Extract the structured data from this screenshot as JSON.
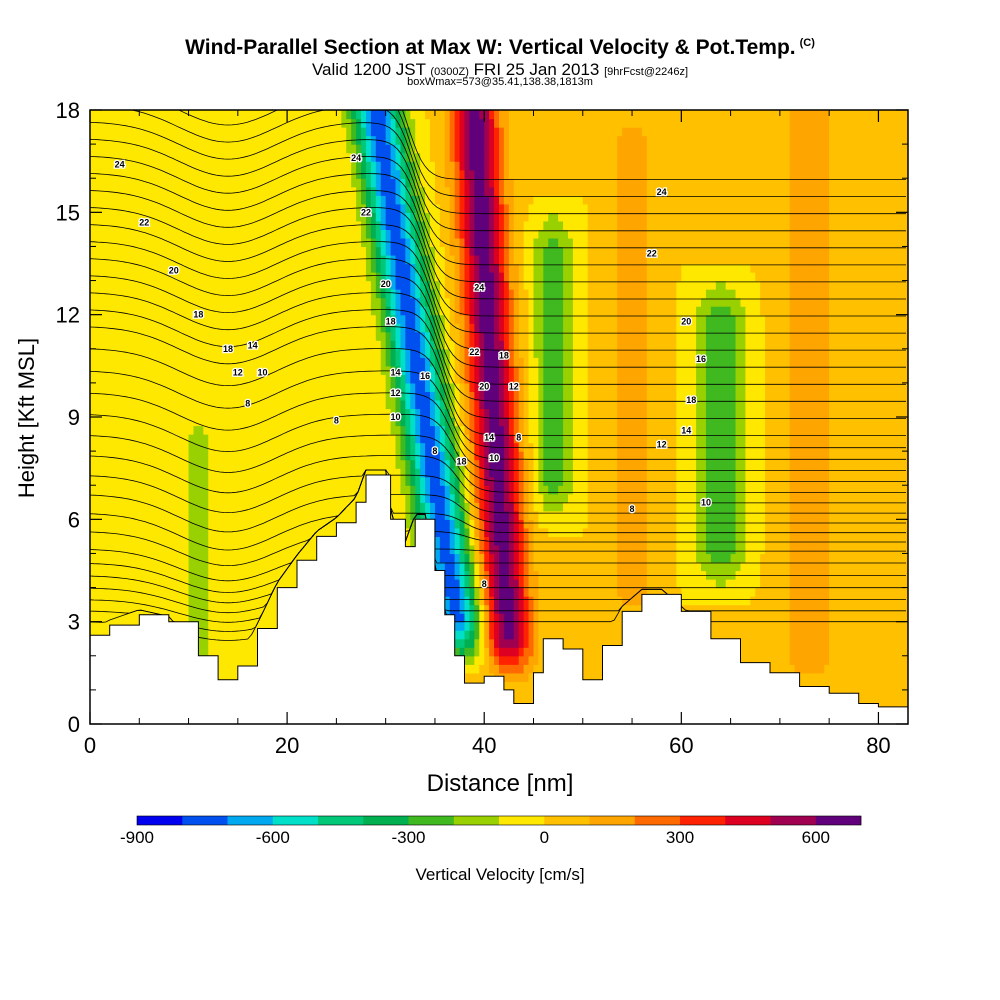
{
  "title": {
    "main": "Wind-Parallel Section at Max W: Vertical Velocity & Pot.Temp.",
    "main_tag": "(C)",
    "valid_prefix": "Valid 1200 JST",
    "valid_zulu": "(0300Z)",
    "valid_date": "FRI 25 Jan 2013",
    "forecast_tag": "[9hrFcst@2246z]",
    "box_info": "boxWmax=573@35.41,138.38,1813m"
  },
  "chart_data": {
    "type": "contour-cross-section",
    "xlabel": "Distance [nm]",
    "ylabel": "Height [Kft MSL]",
    "xlim": [
      0,
      83
    ],
    "ylim": [
      0,
      18
    ],
    "x_ticks": [
      0,
      20,
      40,
      60,
      80
    ],
    "y_ticks": [
      0,
      3,
      6,
      9,
      12,
      15,
      18
    ],
    "colorbar": {
      "label": "Vertical Velocity [cm/s]",
      "tick_labels": [
        -900,
        -600,
        -300,
        0,
        300,
        600
      ],
      "levels": [
        -900,
        -800,
        -700,
        -600,
        -500,
        -400,
        -300,
        -200,
        -100,
        0,
        100,
        200,
        300,
        400,
        500,
        600,
        700
      ],
      "colors": [
        "#0000ee",
        "#0050f0",
        "#00a8f0",
        "#00e0c8",
        "#00c878",
        "#00b050",
        "#40b820",
        "#98d000",
        "#ffe800",
        "#ffc000",
        "#ffa500",
        "#ff6a00",
        "#ff2200",
        "#dd0020",
        "#a00050",
        "#60007a"
      ]
    },
    "terrain_kft": {
      "x": [
        0,
        2,
        5,
        8,
        11,
        13,
        15,
        17,
        19,
        21,
        23,
        25,
        27,
        28,
        30,
        30.5,
        32,
        33,
        34,
        35,
        36,
        37,
        38,
        40,
        42,
        43,
        45,
        46,
        48,
        50,
        52,
        54,
        56,
        58,
        60,
        63,
        66,
        69,
        72,
        75,
        78,
        80,
        83
      ],
      "height": [
        2.6,
        2.9,
        3.2,
        3.0,
        2.0,
        1.3,
        1.7,
        2.8,
        4.0,
        4.8,
        5.5,
        5.9,
        6.5,
        7.3,
        7.3,
        6.0,
        5.2,
        6.0,
        6.0,
        4.5,
        3.2,
        2.0,
        1.2,
        1.4,
        1.0,
        0.6,
        1.5,
        2.5,
        2.2,
        1.3,
        2.3,
        3.3,
        3.8,
        3.8,
        3.3,
        2.5,
        1.8,
        1.5,
        1.1,
        0.9,
        0.6,
        0.5,
        0.3
      ]
    },
    "w_features_cm_s": [
      {
        "name": "strong descent",
        "x_center": 34,
        "x_width": 2.5,
        "z_bottom": 3,
        "z_top": 18,
        "x_shift_per_kft": -0.55,
        "peak": -750
      },
      {
        "name": "strong ascent",
        "x_center": 41,
        "x_width": 2.4,
        "z_bottom": 2.5,
        "z_top": 18,
        "x_shift_per_kft": -0.22,
        "peak": 650
      },
      {
        "name": "weak descent",
        "x_center": 47,
        "x_width": 2,
        "z_bottom": 7,
        "z_top": 14,
        "x_shift_per_kft": 0,
        "peak": -250
      },
      {
        "name": "weak descent",
        "x_center": 64,
        "x_width": 2.5,
        "z_bottom": 5,
        "z_top": 12,
        "x_shift_per_kft": 0,
        "peak": -260
      },
      {
        "name": "weak descent",
        "x_center": 11,
        "x_width": 1.5,
        "z_bottom": 1,
        "z_top": 8,
        "x_shift_per_kft": 0,
        "peak": -180
      },
      {
        "name": "weak ascent",
        "x_center": 73,
        "x_width": 3,
        "z_bottom": 2,
        "z_top": 18,
        "x_shift_per_kft": 0,
        "peak": 170
      },
      {
        "name": "weak ascent",
        "x_center": 55,
        "x_width": 2.5,
        "z_bottom": 4,
        "z_top": 17,
        "x_shift_per_kft": 0,
        "peak": 150
      }
    ],
    "theta_contour_labels": [
      {
        "text": "24",
        "x": 3,
        "z": 16.4
      },
      {
        "text": "24",
        "x": 27,
        "z": 16.6
      },
      {
        "text": "24",
        "x": 58,
        "z": 15.6
      },
      {
        "text": "24",
        "x": 39.5,
        "z": 12.8
      },
      {
        "text": "22",
        "x": 5.5,
        "z": 14.7
      },
      {
        "text": "22",
        "x": 28,
        "z": 15
      },
      {
        "text": "22",
        "x": 57,
        "z": 13.8
      },
      {
        "text": "22",
        "x": 39,
        "z": 10.9
      },
      {
        "text": "20",
        "x": 8.5,
        "z": 13.3
      },
      {
        "text": "20",
        "x": 30,
        "z": 12.9
      },
      {
        "text": "20",
        "x": 60.5,
        "z": 11.8
      },
      {
        "text": "20",
        "x": 40,
        "z": 9.9
      },
      {
        "text": "18",
        "x": 11,
        "z": 12
      },
      {
        "text": "18",
        "x": 14,
        "z": 11
      },
      {
        "text": "18",
        "x": 30.5,
        "z": 11.8
      },
      {
        "text": "18",
        "x": 42,
        "z": 10.8
      },
      {
        "text": "18",
        "x": 61,
        "z": 9.5
      },
      {
        "text": "18",
        "x": 37.7,
        "z": 7.7
      },
      {
        "text": "16",
        "x": 62,
        "z": 10.7
      },
      {
        "text": "16",
        "x": 34,
        "z": 10.2
      },
      {
        "text": "14",
        "x": 16.5,
        "z": 11.1
      },
      {
        "text": "14",
        "x": 31,
        "z": 10.3
      },
      {
        "text": "14",
        "x": 60.5,
        "z": 8.6
      },
      {
        "text": "14",
        "x": 40.5,
        "z": 8.4
      },
      {
        "text": "12",
        "x": 15,
        "z": 10.3
      },
      {
        "text": "12",
        "x": 31,
        "z": 9.7
      },
      {
        "text": "12",
        "x": 43,
        "z": 9.9
      },
      {
        "text": "12",
        "x": 58,
        "z": 8.2
      },
      {
        "text": "10",
        "x": 17.5,
        "z": 10.3
      },
      {
        "text": "10",
        "x": 31,
        "z": 9
      },
      {
        "text": "10",
        "x": 41,
        "z": 7.8
      },
      {
        "text": "10",
        "x": 62.5,
        "z": 6.5
      },
      {
        "text": "8",
        "x": 16,
        "z": 9.4
      },
      {
        "text": "8",
        "x": 25,
        "z": 8.9
      },
      {
        "text": "8",
        "x": 35,
        "z": 8
      },
      {
        "text": "8",
        "x": 43.5,
        "z": 8.4
      },
      {
        "text": "8",
        "x": 55,
        "z": 6.3
      },
      {
        "text": "8",
        "x": 40,
        "z": 4.1
      }
    ],
    "grid": false,
    "legend": "bottom colorbar"
  }
}
